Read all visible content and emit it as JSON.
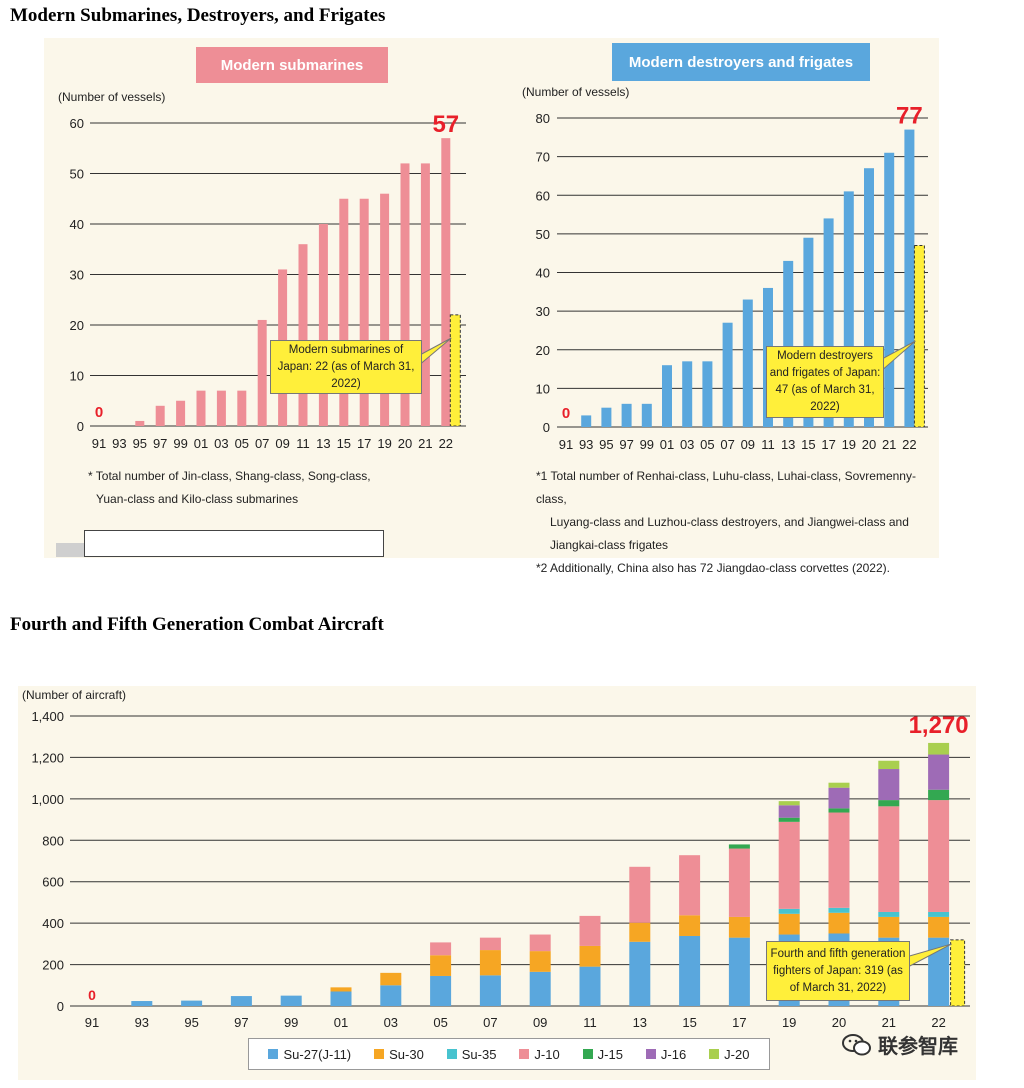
{
  "titles": {
    "top": "Modern Submarines, Destroyers, and Frigates",
    "bottom": "Fourth and Fifth Generation Combat Aircraft"
  },
  "colors": {
    "submarine": "#ee8e96",
    "destroyer": "#5aa7dd",
    "su27": "#5aa7dd",
    "su30": "#f6a623",
    "su35": "#47c3cf",
    "j10": "#ee8e96",
    "j15": "#33a851",
    "j16": "#9e6bb6",
    "j20": "#a9cf4f",
    "japan": "#ffef3a",
    "highlight": "#e8202a"
  },
  "chart_data": [
    {
      "type": "bar",
      "header": "Modern submarines",
      "ylabel": "(Number of vessels)",
      "ylim": [
        0,
        60
      ],
      "yticks": [
        0,
        10,
        20,
        30,
        40,
        50,
        60
      ],
      "categories": [
        "91",
        "93",
        "95",
        "97",
        "99",
        "01",
        "03",
        "05",
        "07",
        "09",
        "11",
        "13",
        "15",
        "17",
        "19",
        "20",
        "21",
        "22"
      ],
      "values": [
        0,
        0,
        1,
        4,
        5,
        7,
        7,
        7,
        21,
        31,
        36,
        40,
        45,
        45,
        46,
        52,
        52,
        57
      ],
      "first_label": "0",
      "last_label": "57",
      "japan_value": 22,
      "japan_note": "Modern submarines of Japan: 22 (as of March 31, 2022)",
      "footnotes": [
        "* Total number of Jin-class, Shang-class, Song-class,",
        "Yuan-class and Kilo-class submarines"
      ]
    },
    {
      "type": "bar",
      "header": "Modern destroyers and frigates",
      "ylabel": "(Number of vessels)",
      "ylim": [
        0,
        80
      ],
      "yticks": [
        0,
        10,
        20,
        30,
        40,
        50,
        60,
        70,
        80
      ],
      "categories": [
        "91",
        "93",
        "95",
        "97",
        "99",
        "01",
        "03",
        "05",
        "07",
        "09",
        "11",
        "13",
        "15",
        "17",
        "19",
        "20",
        "21",
        "22"
      ],
      "values": [
        0,
        3,
        5,
        6,
        6,
        16,
        17,
        17,
        27,
        33,
        36,
        43,
        49,
        54,
        61,
        67,
        71,
        77
      ],
      "first_label": "0",
      "last_label": "77",
      "japan_value": 47,
      "japan_note": "Modern destroyers and frigates of Japan: 47 (as of March 31, 2022)",
      "footnotes": [
        "*1  Total number of Renhai-class, Luhu-class, Luhai-class, Sovremenny-class,",
        "Luyang-class and Luzhou-class destroyers, and Jiangwei-class and",
        "Jiangkai-class frigates",
        "*2  Additionally, China also has 72 Jiangdao-class corvettes (2022)."
      ]
    },
    {
      "type": "stacked-bar",
      "ylabel": "(Number of aircraft)",
      "ylim": [
        0,
        1400
      ],
      "yticks": [
        "0",
        "200",
        "400",
        "600",
        "800",
        "1,000",
        "1,200",
        "1,400"
      ],
      "ytick_values": [
        0,
        200,
        400,
        600,
        800,
        1000,
        1200,
        1400
      ],
      "categories": [
        "91",
        "93",
        "95",
        "97",
        "99",
        "01",
        "03",
        "05",
        "07",
        "09",
        "11",
        "13",
        "15",
        "17",
        "19",
        "20",
        "21",
        "22"
      ],
      "series": [
        {
          "name": "Su-27(J-11)",
          "values": [
            0,
            24,
            26,
            48,
            50,
            70,
            100,
            145,
            148,
            165,
            190,
            310,
            338,
            330,
            345,
            350,
            330,
            330
          ]
        },
        {
          "name": "Su-30",
          "values": [
            0,
            0,
            0,
            0,
            0,
            20,
            60,
            100,
            122,
            100,
            100,
            92,
            100,
            100,
            100,
            100,
            100,
            100
          ]
        },
        {
          "name": "Su-35",
          "values": [
            0,
            0,
            0,
            0,
            0,
            0,
            0,
            0,
            0,
            0,
            0,
            0,
            0,
            0,
            24,
            24,
            24,
            24
          ]
        },
        {
          "name": "J-10",
          "values": [
            0,
            0,
            0,
            0,
            0,
            0,
            0,
            62,
            60,
            80,
            145,
            270,
            290,
            330,
            420,
            460,
            510,
            540
          ]
        },
        {
          "name": "J-15",
          "values": [
            0,
            0,
            0,
            0,
            0,
            0,
            0,
            0,
            0,
            0,
            0,
            0,
            0,
            20,
            20,
            20,
            30,
            50
          ]
        },
        {
          "name": "J-16",
          "values": [
            0,
            0,
            0,
            0,
            0,
            0,
            0,
            0,
            0,
            0,
            0,
            0,
            0,
            0,
            60,
            100,
            150,
            170
          ]
        },
        {
          "name": "J-20",
          "values": [
            0,
            0,
            0,
            0,
            0,
            0,
            0,
            0,
            0,
            0,
            0,
            0,
            0,
            0,
            20,
            24,
            40,
            56
          ]
        }
      ],
      "first_label": "0",
      "last_label": "1,270",
      "japan_value": 319,
      "japan_note": "Fourth and fifth generation fighters of Japan: 319 (as of March 31, 2022)"
    }
  ],
  "watermark": "联参智库"
}
